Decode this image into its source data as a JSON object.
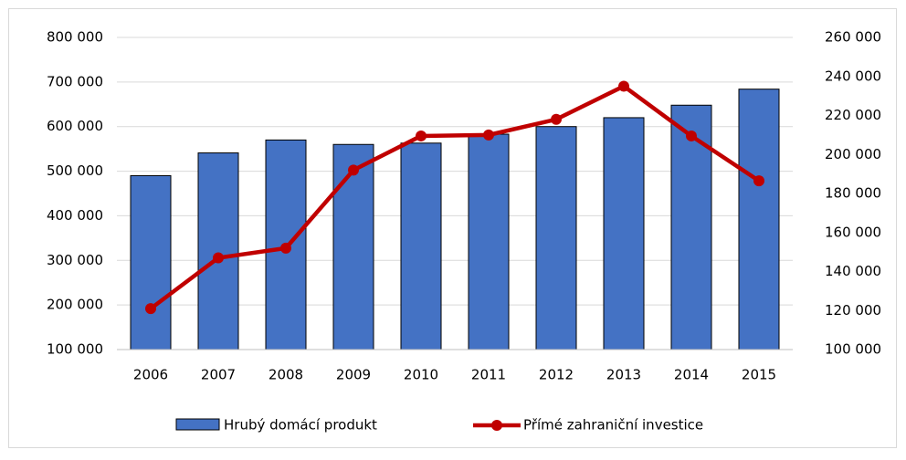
{
  "chart_data": {
    "type": "bar_line",
    "categories": [
      "2006",
      "2007",
      "2008",
      "2009",
      "2010",
      "2011",
      "2012",
      "2013",
      "2014",
      "2015"
    ],
    "series": [
      {
        "name": "Hrubý domácí produkt",
        "type": "bar",
        "color": "#4472c4",
        "values": [
          490000,
          541000,
          570000,
          560000,
          563000,
          583000,
          600000,
          620000,
          648000,
          684000
        ]
      },
      {
        "name": "Přímé zahraniční investice",
        "type": "line",
        "axis": "y2",
        "color": "#c00000",
        "values": [
          121000,
          147000,
          152000,
          192000,
          209500,
          210000,
          218000,
          235000,
          209500,
          186500
        ]
      }
    ],
    "ylim": [
      100000,
      800000
    ],
    "yticks": [
      {
        "value": 100000,
        "label": "100 000"
      },
      {
        "value": 200000,
        "label": "200 000"
      },
      {
        "value": 300000,
        "label": "300 000"
      },
      {
        "value": 400000,
        "label": "400 000"
      },
      {
        "value": 500000,
        "label": "500 000"
      },
      {
        "value": 600000,
        "label": "600 000"
      },
      {
        "value": 700000,
        "label": "700 000"
      },
      {
        "value": 800000,
        "label": "800 000"
      }
    ],
    "y2lim": [
      100000,
      260000
    ],
    "y2ticks": [
      {
        "value": 100000,
        "label": "100 000"
      },
      {
        "value": 120000,
        "label": "120 000"
      },
      {
        "value": 140000,
        "label": "140 000"
      },
      {
        "value": 160000,
        "label": "160 000"
      },
      {
        "value": 180000,
        "label": "180 000"
      },
      {
        "value": 200000,
        "label": "200 000"
      },
      {
        "value": 220000,
        "label": "220 000"
      },
      {
        "value": 240000,
        "label": "240 000"
      },
      {
        "value": 260000,
        "label": "260 000"
      }
    ],
    "grid": true,
    "legend": "bottom"
  }
}
